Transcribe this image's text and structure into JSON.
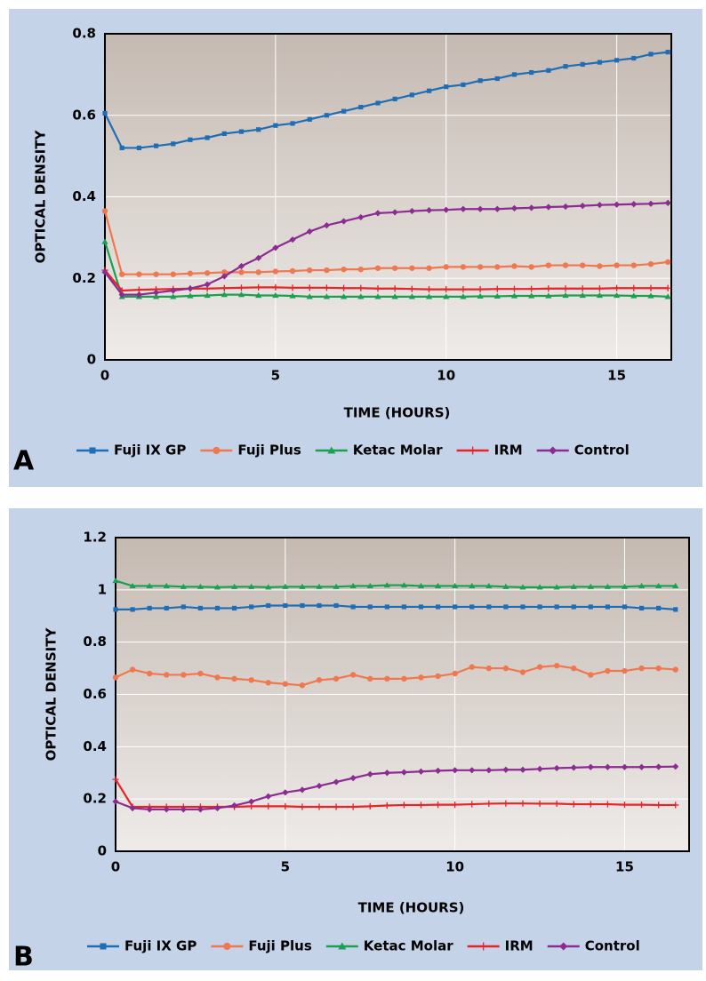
{
  "chart_data": [
    {
      "type": "line",
      "label": "A",
      "xlabel": "TIME (HOURS)",
      "ylabel": "OPTICAL DENSITY",
      "x": [
        0,
        0.5,
        1,
        1.5,
        2,
        2.5,
        3,
        3.5,
        4,
        4.5,
        5,
        5.5,
        6,
        6.5,
        7,
        7.5,
        8,
        8.5,
        9,
        9.5,
        10,
        10.5,
        11,
        11.5,
        12,
        12.5,
        13,
        13.5,
        14,
        14.5,
        15,
        15.5,
        16,
        16.5
      ],
      "xlim": [
        0,
        16.6
      ],
      "xticks": [
        0,
        5,
        10,
        15
      ],
      "ylim": [
        0,
        0.8
      ],
      "yticks": [
        0,
        0.2,
        0.4,
        0.6,
        0.8
      ],
      "grid": true,
      "series": [
        {
          "name": "Fuji IX GP",
          "color": "#1f6db5",
          "marker": "square",
          "values": [
            0.605,
            0.52,
            0.52,
            0.525,
            0.53,
            0.54,
            0.545,
            0.555,
            0.56,
            0.565,
            0.575,
            0.58,
            0.59,
            0.6,
            0.61,
            0.62,
            0.63,
            0.64,
            0.65,
            0.66,
            0.67,
            0.675,
            0.685,
            0.69,
            0.7,
            0.705,
            0.71,
            0.72,
            0.725,
            0.73,
            0.735,
            0.74,
            0.75,
            0.755
          ]
        },
        {
          "name": "Fuji Plus",
          "color": "#f07850",
          "marker": "circle",
          "values": [
            0.365,
            0.21,
            0.21,
            0.21,
            0.21,
            0.212,
            0.213,
            0.215,
            0.215,
            0.215,
            0.217,
            0.218,
            0.22,
            0.22,
            0.222,
            0.222,
            0.225,
            0.225,
            0.225,
            0.225,
            0.228,
            0.228,
            0.228,
            0.228,
            0.23,
            0.228,
            0.232,
            0.232,
            0.232,
            0.23,
            0.232,
            0.232,
            0.235,
            0.24
          ]
        },
        {
          "name": "Ketac Molar",
          "color": "#1aa050",
          "marker": "triangle",
          "values": [
            0.29,
            0.155,
            0.155,
            0.155,
            0.155,
            0.157,
            0.158,
            0.16,
            0.16,
            0.158,
            0.158,
            0.157,
            0.155,
            0.155,
            0.155,
            0.155,
            0.155,
            0.155,
            0.155,
            0.155,
            0.155,
            0.155,
            0.156,
            0.156,
            0.157,
            0.157,
            0.157,
            0.158,
            0.158,
            0.158,
            0.158,
            0.157,
            0.157,
            0.155
          ]
        },
        {
          "name": "IRM",
          "color": "#e8232a",
          "marker": "plus",
          "values": [
            0.22,
            0.17,
            0.172,
            0.173,
            0.174,
            0.175,
            0.175,
            0.176,
            0.177,
            0.178,
            0.178,
            0.177,
            0.177,
            0.177,
            0.176,
            0.176,
            0.175,
            0.175,
            0.174,
            0.173,
            0.173,
            0.173,
            0.173,
            0.174,
            0.174,
            0.174,
            0.175,
            0.175,
            0.175,
            0.175,
            0.176,
            0.176,
            0.176,
            0.176
          ]
        },
        {
          "name": "Control",
          "color": "#8b2c91",
          "marker": "diamond",
          "values": [
            0.215,
            0.16,
            0.16,
            0.165,
            0.17,
            0.175,
            0.185,
            0.205,
            0.23,
            0.25,
            0.275,
            0.295,
            0.315,
            0.33,
            0.34,
            0.35,
            0.36,
            0.362,
            0.365,
            0.367,
            0.368,
            0.37,
            0.37,
            0.37,
            0.372,
            0.373,
            0.375,
            0.376,
            0.378,
            0.38,
            0.381,
            0.382,
            0.383,
            0.385
          ]
        }
      ]
    },
    {
      "type": "line",
      "label": "B",
      "xlabel": "TIME (HOURS)",
      "ylabel": "OPTICAL DENSITY",
      "x": [
        0,
        0.5,
        1,
        1.5,
        2,
        2.5,
        3,
        3.5,
        4,
        4.5,
        5,
        5.5,
        6,
        6.5,
        7,
        7.5,
        8,
        8.5,
        9,
        9.5,
        10,
        10.5,
        11,
        11.5,
        12,
        12.5,
        13,
        13.5,
        14,
        14.5,
        15,
        15.5,
        16,
        16.5
      ],
      "xlim": [
        0,
        16.9
      ],
      "xticks": [
        0,
        5,
        10,
        15
      ],
      "ylim": [
        0,
        1.2
      ],
      "yticks": [
        0,
        0.2,
        0.4,
        0.6,
        0.8,
        1,
        1.2
      ],
      "grid": true,
      "series": [
        {
          "name": "Fuji IX GP",
          "color": "#1f6db5",
          "marker": "square",
          "values": [
            0.925,
            0.925,
            0.93,
            0.93,
            0.935,
            0.93,
            0.93,
            0.93,
            0.935,
            0.94,
            0.94,
            0.94,
            0.94,
            0.94,
            0.935,
            0.935,
            0.935,
            0.935,
            0.935,
            0.935,
            0.935,
            0.935,
            0.935,
            0.935,
            0.935,
            0.935,
            0.935,
            0.935,
            0.935,
            0.935,
            0.935,
            0.93,
            0.93,
            0.925
          ]
        },
        {
          "name": "Fuji Plus",
          "color": "#f07850",
          "marker": "circle",
          "values": [
            0.665,
            0.695,
            0.68,
            0.675,
            0.675,
            0.68,
            0.665,
            0.66,
            0.655,
            0.645,
            0.64,
            0.635,
            0.655,
            0.66,
            0.675,
            0.66,
            0.66,
            0.66,
            0.665,
            0.67,
            0.68,
            0.705,
            0.7,
            0.7,
            0.685,
            0.705,
            0.71,
            0.7,
            0.675,
            0.69,
            0.69,
            0.7,
            0.7,
            0.695
          ]
        },
        {
          "name": "Ketac Molar",
          "color": "#1aa050",
          "marker": "triangle",
          "values": [
            1.035,
            1.015,
            1.015,
            1.015,
            1.012,
            1.012,
            1.01,
            1.012,
            1.012,
            1.01,
            1.012,
            1.012,
            1.012,
            1.012,
            1.015,
            1.015,
            1.018,
            1.018,
            1.015,
            1.015,
            1.015,
            1.015,
            1.015,
            1.012,
            1.01,
            1.01,
            1.01,
            1.012,
            1.012,
            1.012,
            1.012,
            1.015,
            1.015,
            1.015
          ]
        },
        {
          "name": "IRM",
          "color": "#e8232a",
          "marker": "plus",
          "values": [
            0.275,
            0.17,
            0.17,
            0.17,
            0.17,
            0.17,
            0.17,
            0.17,
            0.172,
            0.172,
            0.172,
            0.17,
            0.17,
            0.17,
            0.17,
            0.172,
            0.175,
            0.177,
            0.177,
            0.178,
            0.178,
            0.18,
            0.182,
            0.183,
            0.183,
            0.182,
            0.182,
            0.18,
            0.18,
            0.18,
            0.178,
            0.178,
            0.177,
            0.177
          ]
        },
        {
          "name": "Control",
          "color": "#8b2c91",
          "marker": "diamond",
          "values": [
            0.19,
            0.165,
            0.16,
            0.16,
            0.16,
            0.16,
            0.165,
            0.175,
            0.19,
            0.21,
            0.225,
            0.235,
            0.25,
            0.265,
            0.28,
            0.295,
            0.3,
            0.302,
            0.305,
            0.308,
            0.31,
            0.31,
            0.31,
            0.312,
            0.312,
            0.315,
            0.318,
            0.32,
            0.322,
            0.322,
            0.322,
            0.322,
            0.323,
            0.324
          ]
        }
      ]
    }
  ]
}
